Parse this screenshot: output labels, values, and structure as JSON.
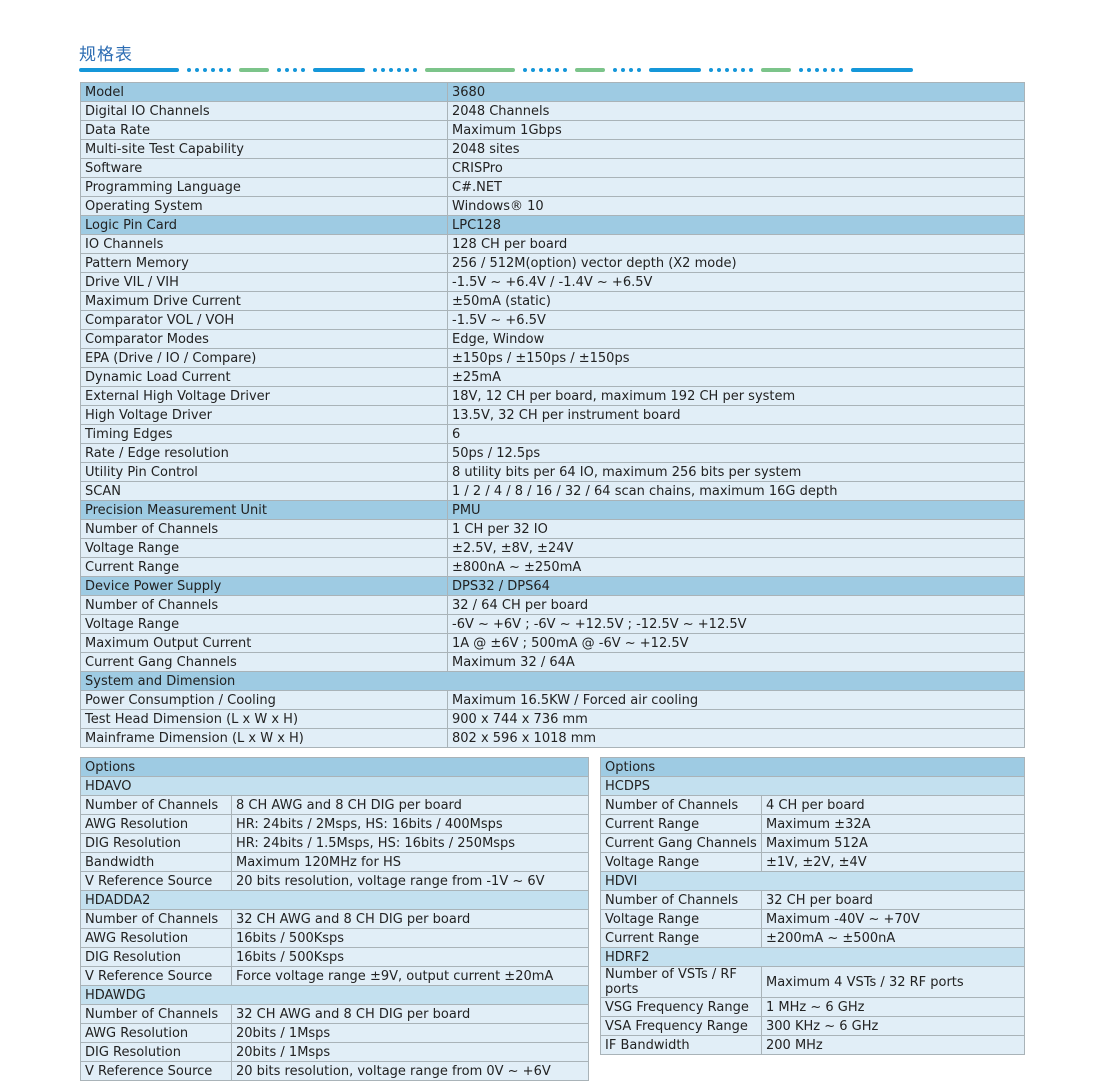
{
  "title": "规格表",
  "colors": {
    "header": "#9ecbe3",
    "section": "#c3e0ef",
    "row": "#e1eef7",
    "title": "#2d6db3",
    "deco_blue": "#1597d9",
    "deco_green": "#7cc48a"
  },
  "main": [
    [
      "h",
      "Model",
      "3680"
    ],
    [
      "d",
      "Digital IO Channels",
      "2048 Channels"
    ],
    [
      "d",
      "Data Rate",
      "Maximum 1Gbps"
    ],
    [
      "d",
      "Multi-site Test Capability",
      "2048 sites"
    ],
    [
      "d",
      "Software",
      "CRISPro"
    ],
    [
      "d",
      "Programming Language",
      "C#.NET"
    ],
    [
      "d",
      "Operating System",
      "Windows® 10"
    ],
    [
      "h",
      "Logic Pin Card",
      "LPC128"
    ],
    [
      "d",
      "IO Channels",
      "128 CH per board"
    ],
    [
      "d",
      "Pattern Memory",
      "256 / 512M(option) vector depth (X2 mode)"
    ],
    [
      "d",
      "Drive VIL / VIH",
      "-1.5V ~ +6.4V / -1.4V ~ +6.5V"
    ],
    [
      "d",
      "Maximum Drive Current",
      "±50mA (static)"
    ],
    [
      "d",
      "Comparator VOL / VOH",
      "-1.5V ~ +6.5V"
    ],
    [
      "d",
      "Comparator Modes",
      "Edge, Window"
    ],
    [
      "d",
      "EPA (Drive / IO / Compare)",
      "±150ps / ±150ps / ±150ps"
    ],
    [
      "d",
      "Dynamic Load Current",
      "±25mA"
    ],
    [
      "d",
      "External High Voltage Driver",
      "18V, 12 CH per board, maximum 192 CH per system"
    ],
    [
      "d",
      "High Voltage Driver",
      "13.5V, 32 CH per instrument board"
    ],
    [
      "d",
      "Timing Edges",
      "6"
    ],
    [
      "d",
      "Rate / Edge resolution",
      "50ps / 12.5ps"
    ],
    [
      "d",
      "Utility Pin Control",
      "8 utility bits per 64 IO, maximum 256 bits per system"
    ],
    [
      "d",
      "SCAN",
      "1 / 2 / 4 / 8 / 16 / 32 / 64 scan chains, maximum 16G depth"
    ],
    [
      "h",
      "Precision Measurement Unit",
      "PMU"
    ],
    [
      "d",
      "Number of Channels",
      "1 CH per 32 IO"
    ],
    [
      "d",
      "Voltage Range",
      "±2.5V, ±8V, ±24V"
    ],
    [
      "d",
      "Current Range",
      "±800nA ~ ±250mA"
    ],
    [
      "h",
      "Device Power Supply",
      "DPS32 / DPS64"
    ],
    [
      "d",
      "Number of Channels",
      "32 / 64 CH per board"
    ],
    [
      "d",
      "Voltage Range",
      "-6V ~ +6V ; -6V ~ +12.5V ; -12.5V ~ +12.5V"
    ],
    [
      "d",
      "Maximum Output Current",
      "1A @ ±6V ; 500mA @ -6V ~ +12.5V"
    ],
    [
      "d",
      "Current Gang Channels",
      "Maximum 32 / 64A"
    ],
    [
      "h",
      "System and Dimension",
      ""
    ],
    [
      "d",
      "Power Consumption / Cooling",
      "Maximum 16.5KW / Forced air cooling"
    ],
    [
      "d",
      "Test Head Dimension (L x W x H)",
      "900 x 744 x 736 mm"
    ],
    [
      "d",
      "Mainframe Dimension (L x W x H)",
      "802 x 596 x 1018 mm"
    ]
  ],
  "options_left": [
    [
      "h",
      "Options",
      ""
    ],
    [
      "s",
      "HDAVO",
      ""
    ],
    [
      "d",
      "Number of Channels",
      "8 CH AWG and 8 CH DIG per board"
    ],
    [
      "d",
      "AWG Resolution",
      "HR: 24bits / 2Msps, HS: 16bits / 400Msps"
    ],
    [
      "d",
      "DIG Resolution",
      "HR: 24bits / 1.5Msps, HS: 16bits / 250Msps"
    ],
    [
      "d",
      "Bandwidth",
      "Maximum 120MHz for HS"
    ],
    [
      "d",
      "V Reference Source",
      "20 bits resolution, voltage range from -1V ~ 6V"
    ],
    [
      "s",
      "HDADDA2",
      ""
    ],
    [
      "d",
      "Number of Channels",
      "32 CH AWG and 8 CH DIG per board"
    ],
    [
      "d",
      "AWG Resolution",
      "16bits / 500Ksps"
    ],
    [
      "d",
      "DIG Resolution",
      "16bits / 500Ksps"
    ],
    [
      "d",
      "V Reference Source",
      "Force voltage range  ±9V, output current  ±20mA"
    ],
    [
      "s",
      "HDAWDG",
      ""
    ],
    [
      "d",
      "Number of Channels",
      "32 CH AWG and 8 CH DIG per board"
    ],
    [
      "d",
      "AWG Resolution",
      "20bits / 1Msps"
    ],
    [
      "d",
      "DIG Resolution",
      "20bits / 1Msps"
    ],
    [
      "d",
      "V Reference Source",
      "20 bits resolution, voltage range from 0V ~ +6V"
    ]
  ],
  "options_right": [
    [
      "h",
      "Options",
      ""
    ],
    [
      "s",
      "HCDPS",
      ""
    ],
    [
      "d",
      "Number of Channels",
      "4 CH per board"
    ],
    [
      "d",
      "Current Range",
      "Maximum ±32A"
    ],
    [
      "w",
      "Current Gang Channels",
      "Maximum 512A"
    ],
    [
      "d",
      "Voltage Range",
      "±1V, ±2V, ±4V"
    ],
    [
      "s",
      "HDVI",
      ""
    ],
    [
      "d",
      "Number of Channels",
      "32 CH per board"
    ],
    [
      "d",
      "Voltage Range",
      "Maximum -40V ~ +70V"
    ],
    [
      "d",
      "Current Range",
      "±200mA ~ ±500nA"
    ],
    [
      "s",
      "HDRF2",
      ""
    ],
    [
      "w",
      "Number of VSTs / RF ports",
      "Maximum 4 VSTs / 32 RF ports"
    ],
    [
      "d",
      "VSG Frequency Range",
      "1 MHz ~ 6 GHz"
    ],
    [
      "d",
      "VSA Frequency Range",
      "300 KHz ~ 6 GHz"
    ],
    [
      "d",
      "IF Bandwidth",
      "200 MHz"
    ]
  ]
}
